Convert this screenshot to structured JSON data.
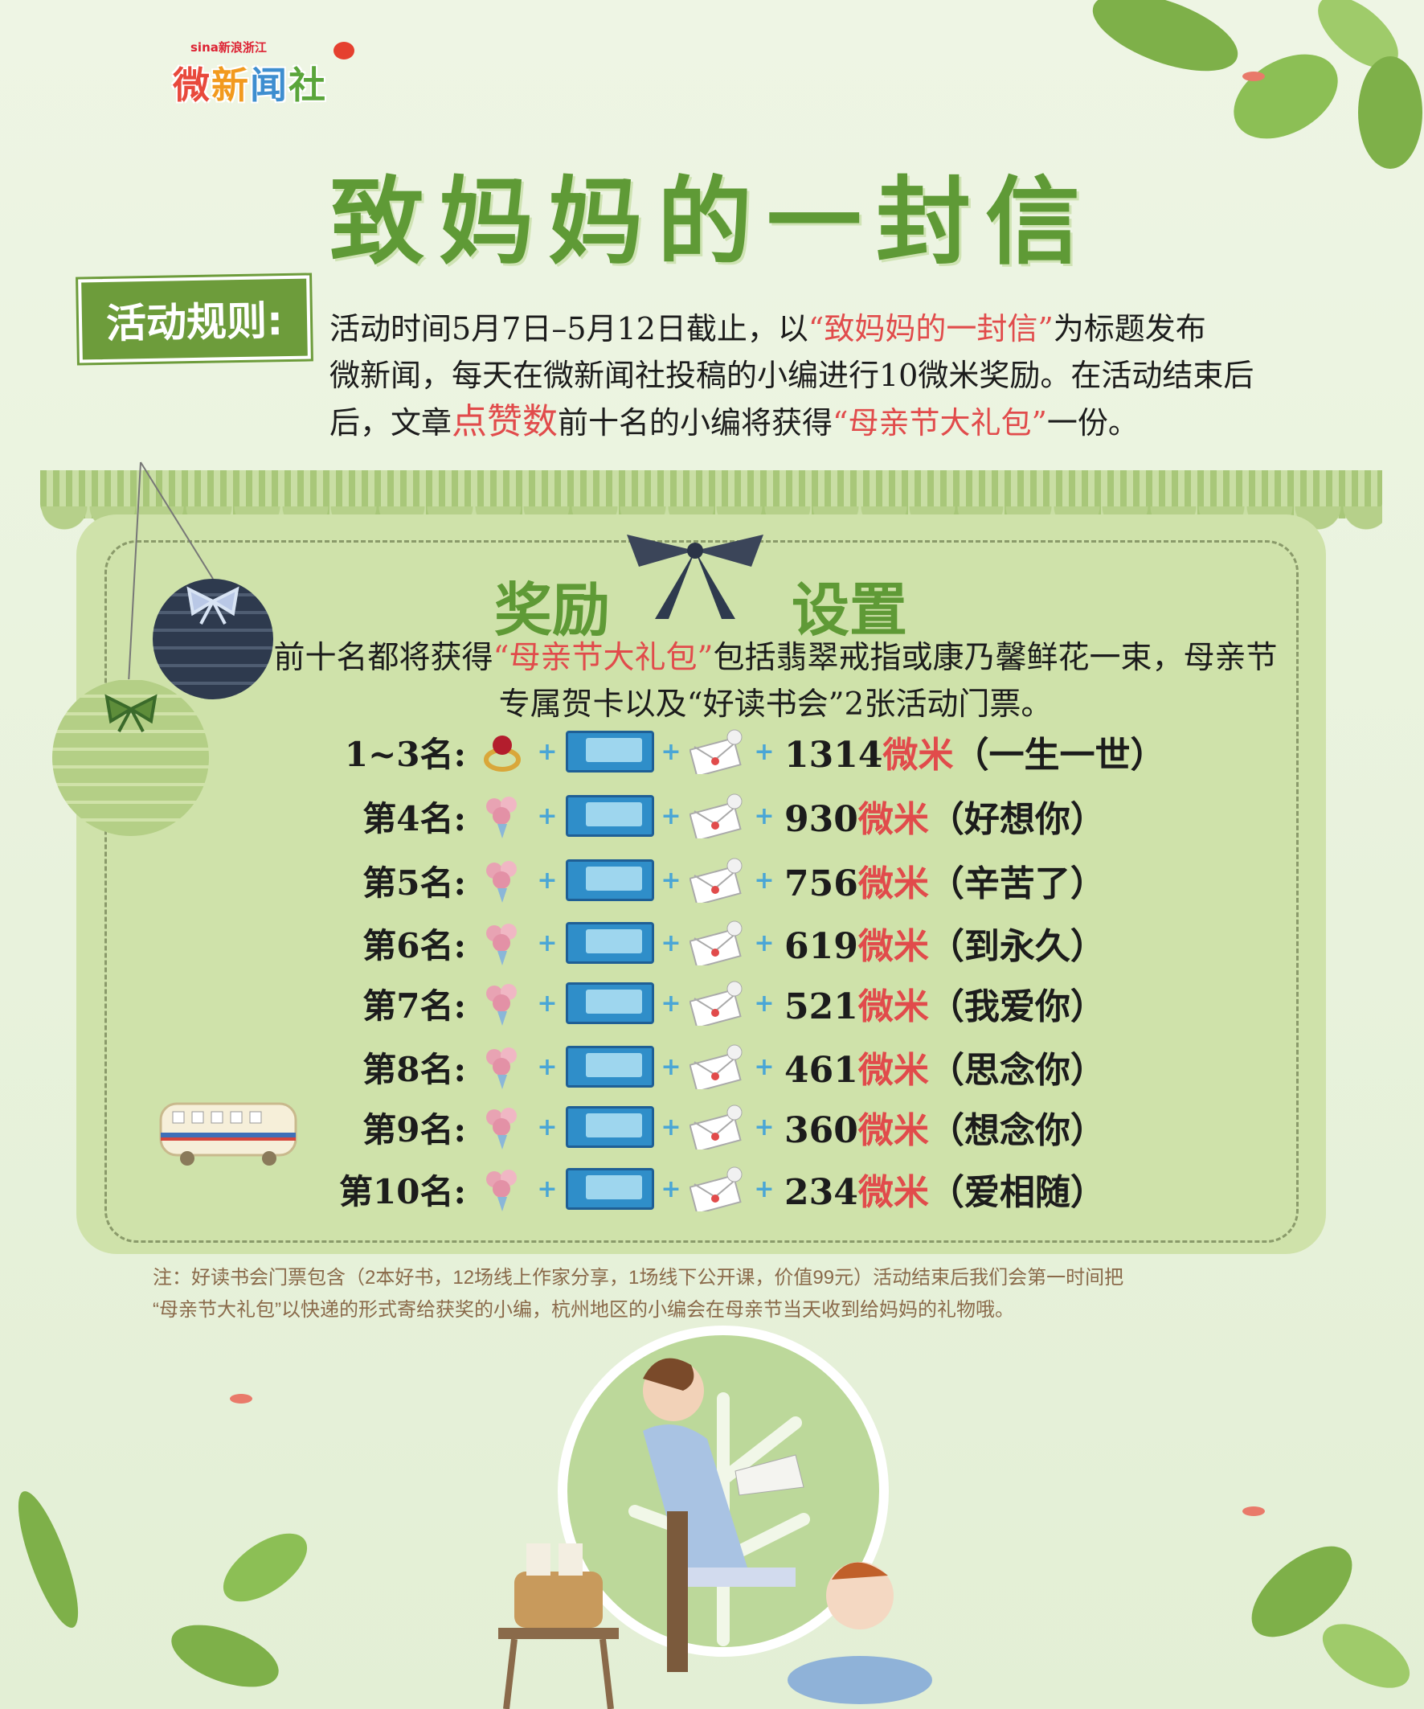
{
  "logo": {
    "brand": "sina新浪浙江",
    "chars": [
      "微",
      "新",
      "闻",
      "社"
    ]
  },
  "title": "致妈妈的一封信",
  "rules": {
    "tag": "活动规则:",
    "line1_a": "活动时间5月7日–5月12日截止，以",
    "line1_quote": "“致妈妈的一封信”",
    "line1_b": "为标题发布",
    "line2": "微新闻，每天在微新闻社投稿的小编进行10微米奖励。在活动结束后",
    "line3_a": "后，文章",
    "line3_hl": "点赞数",
    "line3_b": "前十名的小编将获得",
    "line3_quote": "“母亲节大礼包”",
    "line3_c": "一份。"
  },
  "rewards": {
    "title_left": "奖励",
    "title_right": "设置",
    "intro_a": "前十名都将获得",
    "intro_quote": "“母亲节大礼包”",
    "intro_b": "包括翡翠戒指或康乃馨鲜花一束，母亲节专属贺卡以及“好读书会”2张活动门票。",
    "unit": "微米",
    "plus": "+",
    "rows": [
      {
        "rank": "1~3名:",
        "gift": "ring-icon",
        "amount": "1314",
        "meaning": "（一生一世）"
      },
      {
        "rank": "第4名:",
        "gift": "flower-icon",
        "amount": "930",
        "meaning": "（好想你）"
      },
      {
        "rank": "第5名:",
        "gift": "flower-icon",
        "amount": "756",
        "meaning": "（辛苦了）"
      },
      {
        "rank": "第6名:",
        "gift": "flower-icon",
        "amount": "619",
        "meaning": "（到永久）"
      },
      {
        "rank": "第7名:",
        "gift": "flower-icon",
        "amount": "521",
        "meaning": "（我爱你）"
      },
      {
        "rank": "第8名:",
        "gift": "flower-icon",
        "amount": "461",
        "meaning": "（思念你）"
      },
      {
        "rank": "第9名:",
        "gift": "flower-icon",
        "amount": "360",
        "meaning": "（想念你）"
      },
      {
        "rank": "第10名:",
        "gift": "flower-icon",
        "amount": "234",
        "meaning": "（爱相随）"
      }
    ]
  },
  "note": {
    "line1": "注：好读书会门票包含（2本好书，12场线上作家分享，1场线下公开课，价值99元）活动结束后我们会第一时间把",
    "line2": "“母亲节大礼包”以快递的形式寄给获奖的小编，杭州地区的小编会在母亲节当天收到给妈妈的礼物哦。"
  },
  "colors": {
    "accent_green": "#5f9a36",
    "highlight_red": "#e14b4b",
    "panel": "#cfe2aa"
  }
}
